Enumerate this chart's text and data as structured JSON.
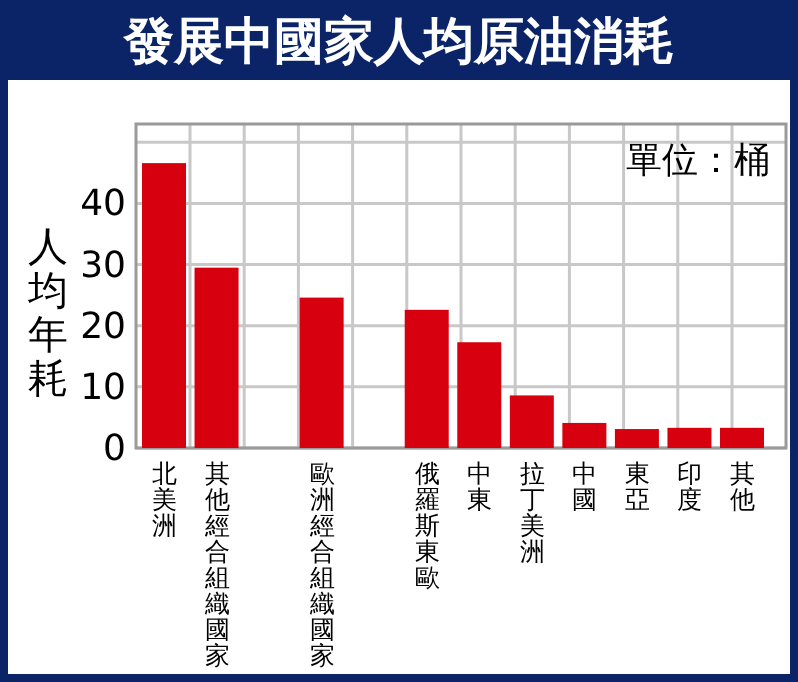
{
  "chart_data": {
    "type": "bar",
    "title": "發展中國家人均原油消耗",
    "ylabel": "人均年耗",
    "annotations": [
      "單位：桶"
    ],
    "categories": [
      "北美洲",
      "其他經合組織國家",
      "歐洲經合組織國家",
      "俄羅斯東歐",
      "中東",
      "拉丁美洲",
      "中國",
      "東亞",
      "印度",
      "其他"
    ],
    "values": [
      46.6,
      29.5,
      24.6,
      22.6,
      17.3,
      8.6,
      4.1,
      3.1,
      3.3,
      3.3
    ],
    "color": "#d7000f",
    "ylim": [
      0,
      53
    ],
    "yticks": [
      0,
      10,
      20,
      30,
      40,
      {
        "value": 50,
        "label": null
      }
    ],
    "grid": true
  }
}
